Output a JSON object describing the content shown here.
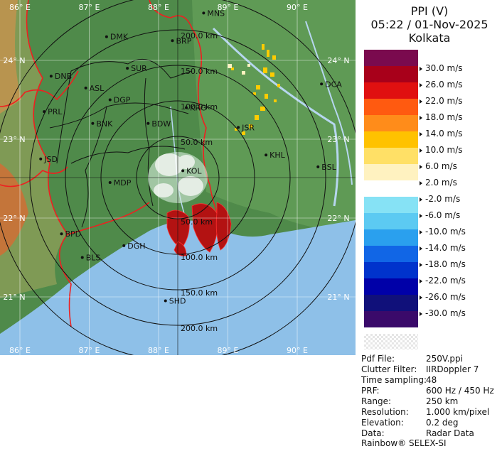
{
  "header": {
    "product": "PPI (V)",
    "datetime": "05:22 / 01-Nov-2025",
    "station": "Kolkata"
  },
  "legend": [
    {
      "label": "30.0 m/s",
      "color": "#7a0a4e"
    },
    {
      "label": "26.0 m/s",
      "color": "#a8001a"
    },
    {
      "label": "22.0 m/s",
      "color": "#e01010"
    },
    {
      "label": "18.0 m/s",
      "color": "#ff5a10"
    },
    {
      "label": "14.0 m/s",
      "color": "#ff8c1a"
    },
    {
      "label": "10.0 m/s",
      "color": "#ffc200"
    },
    {
      "label": "6.0 m/s",
      "color": "#ffe066"
    },
    {
      "label": "2.0 m/s",
      "color": "#fff2c0"
    },
    {
      "label": "-2.0 m/s",
      "color": "#ffffff"
    },
    {
      "label": "-6.0 m/s",
      "color": "#86e2f5"
    },
    {
      "label": "-10.0 m/s",
      "color": "#5ccaf2"
    },
    {
      "label": "-14.0 m/s",
      "color": "#2aa0ee"
    },
    {
      "label": "-18.0 m/s",
      "color": "#1166e6"
    },
    {
      "label": "-22.0 m/s",
      "color": "#0033cc"
    },
    {
      "label": "-26.0 m/s",
      "color": "#0000a8"
    },
    {
      "label": "-30.0 m/s",
      "color": "#10107a"
    },
    {
      "label": "",
      "color": "#3a0a6a"
    }
  ],
  "info": [
    {
      "key": "Pdf File:",
      "value": "250V.ppi"
    },
    {
      "key": "Clutter Filter:",
      "value": "IIRDoppler 7"
    },
    {
      "key": "Time sampling:",
      "value": "48"
    },
    {
      "key": "PRF:",
      "value": "600 Hz / 450 Hz"
    },
    {
      "key": "Range:",
      "value": "250 km"
    },
    {
      "key": "Resolution:",
      "value": "1.000 km/pixel"
    },
    {
      "key": "Elevation:",
      "value": "0.2 deg"
    },
    {
      "key": "Data:",
      "value": "Radar Data"
    }
  ],
  "brand": "Rainbow® SELEX-SI",
  "map": {
    "lon_labels": [
      "86° E",
      "87° E",
      "88° E",
      "89° E",
      "90° E"
    ],
    "lat_labels": [
      "24° N",
      "23° N",
      "22° N",
      "21° N"
    ],
    "range_rings": [
      "50.0 km",
      "100.0 km",
      "150.0 km",
      "200.0 km"
    ],
    "cities": [
      {
        "name": "MNS",
        "x": 88.65,
        "y": 24.6
      },
      {
        "name": "DMK",
        "x": 87.25,
        "y": 24.3
      },
      {
        "name": "BRP",
        "x": 88.2,
        "y": 24.25
      },
      {
        "name": "DNB",
        "x": 86.45,
        "y": 23.8
      },
      {
        "name": "SUR",
        "x": 87.55,
        "y": 23.9
      },
      {
        "name": "ASL",
        "x": 86.95,
        "y": 23.65
      },
      {
        "name": "DGP",
        "x": 87.3,
        "y": 23.5
      },
      {
        "name": "KRG",
        "x": 88.4,
        "y": 23.4
      },
      {
        "name": "DCA",
        "x": 90.35,
        "y": 23.7
      },
      {
        "name": "PRL",
        "x": 86.35,
        "y": 23.35
      },
      {
        "name": "BNK",
        "x": 87.05,
        "y": 23.2
      },
      {
        "name": "BDW",
        "x": 87.85,
        "y": 23.2
      },
      {
        "name": "JSR",
        "x": 89.15,
        "y": 23.15
      },
      {
        "name": "KHL",
        "x": 89.55,
        "y": 22.8
      },
      {
        "name": "JSD",
        "x": 86.3,
        "y": 22.75
      },
      {
        "name": "BSL",
        "x": 90.3,
        "y": 22.65
      },
      {
        "name": "KOL",
        "x": 88.35,
        "y": 22.6
      },
      {
        "name": "MDP",
        "x": 87.3,
        "y": 22.45
      },
      {
        "name": "BPD",
        "x": 86.6,
        "y": 21.8
      },
      {
        "name": "BLS",
        "x": 86.9,
        "y": 21.5
      },
      {
        "name": "DGH",
        "x": 87.5,
        "y": 21.65
      },
      {
        "name": "SHD",
        "x": 88.1,
        "y": 20.95
      }
    ]
  }
}
